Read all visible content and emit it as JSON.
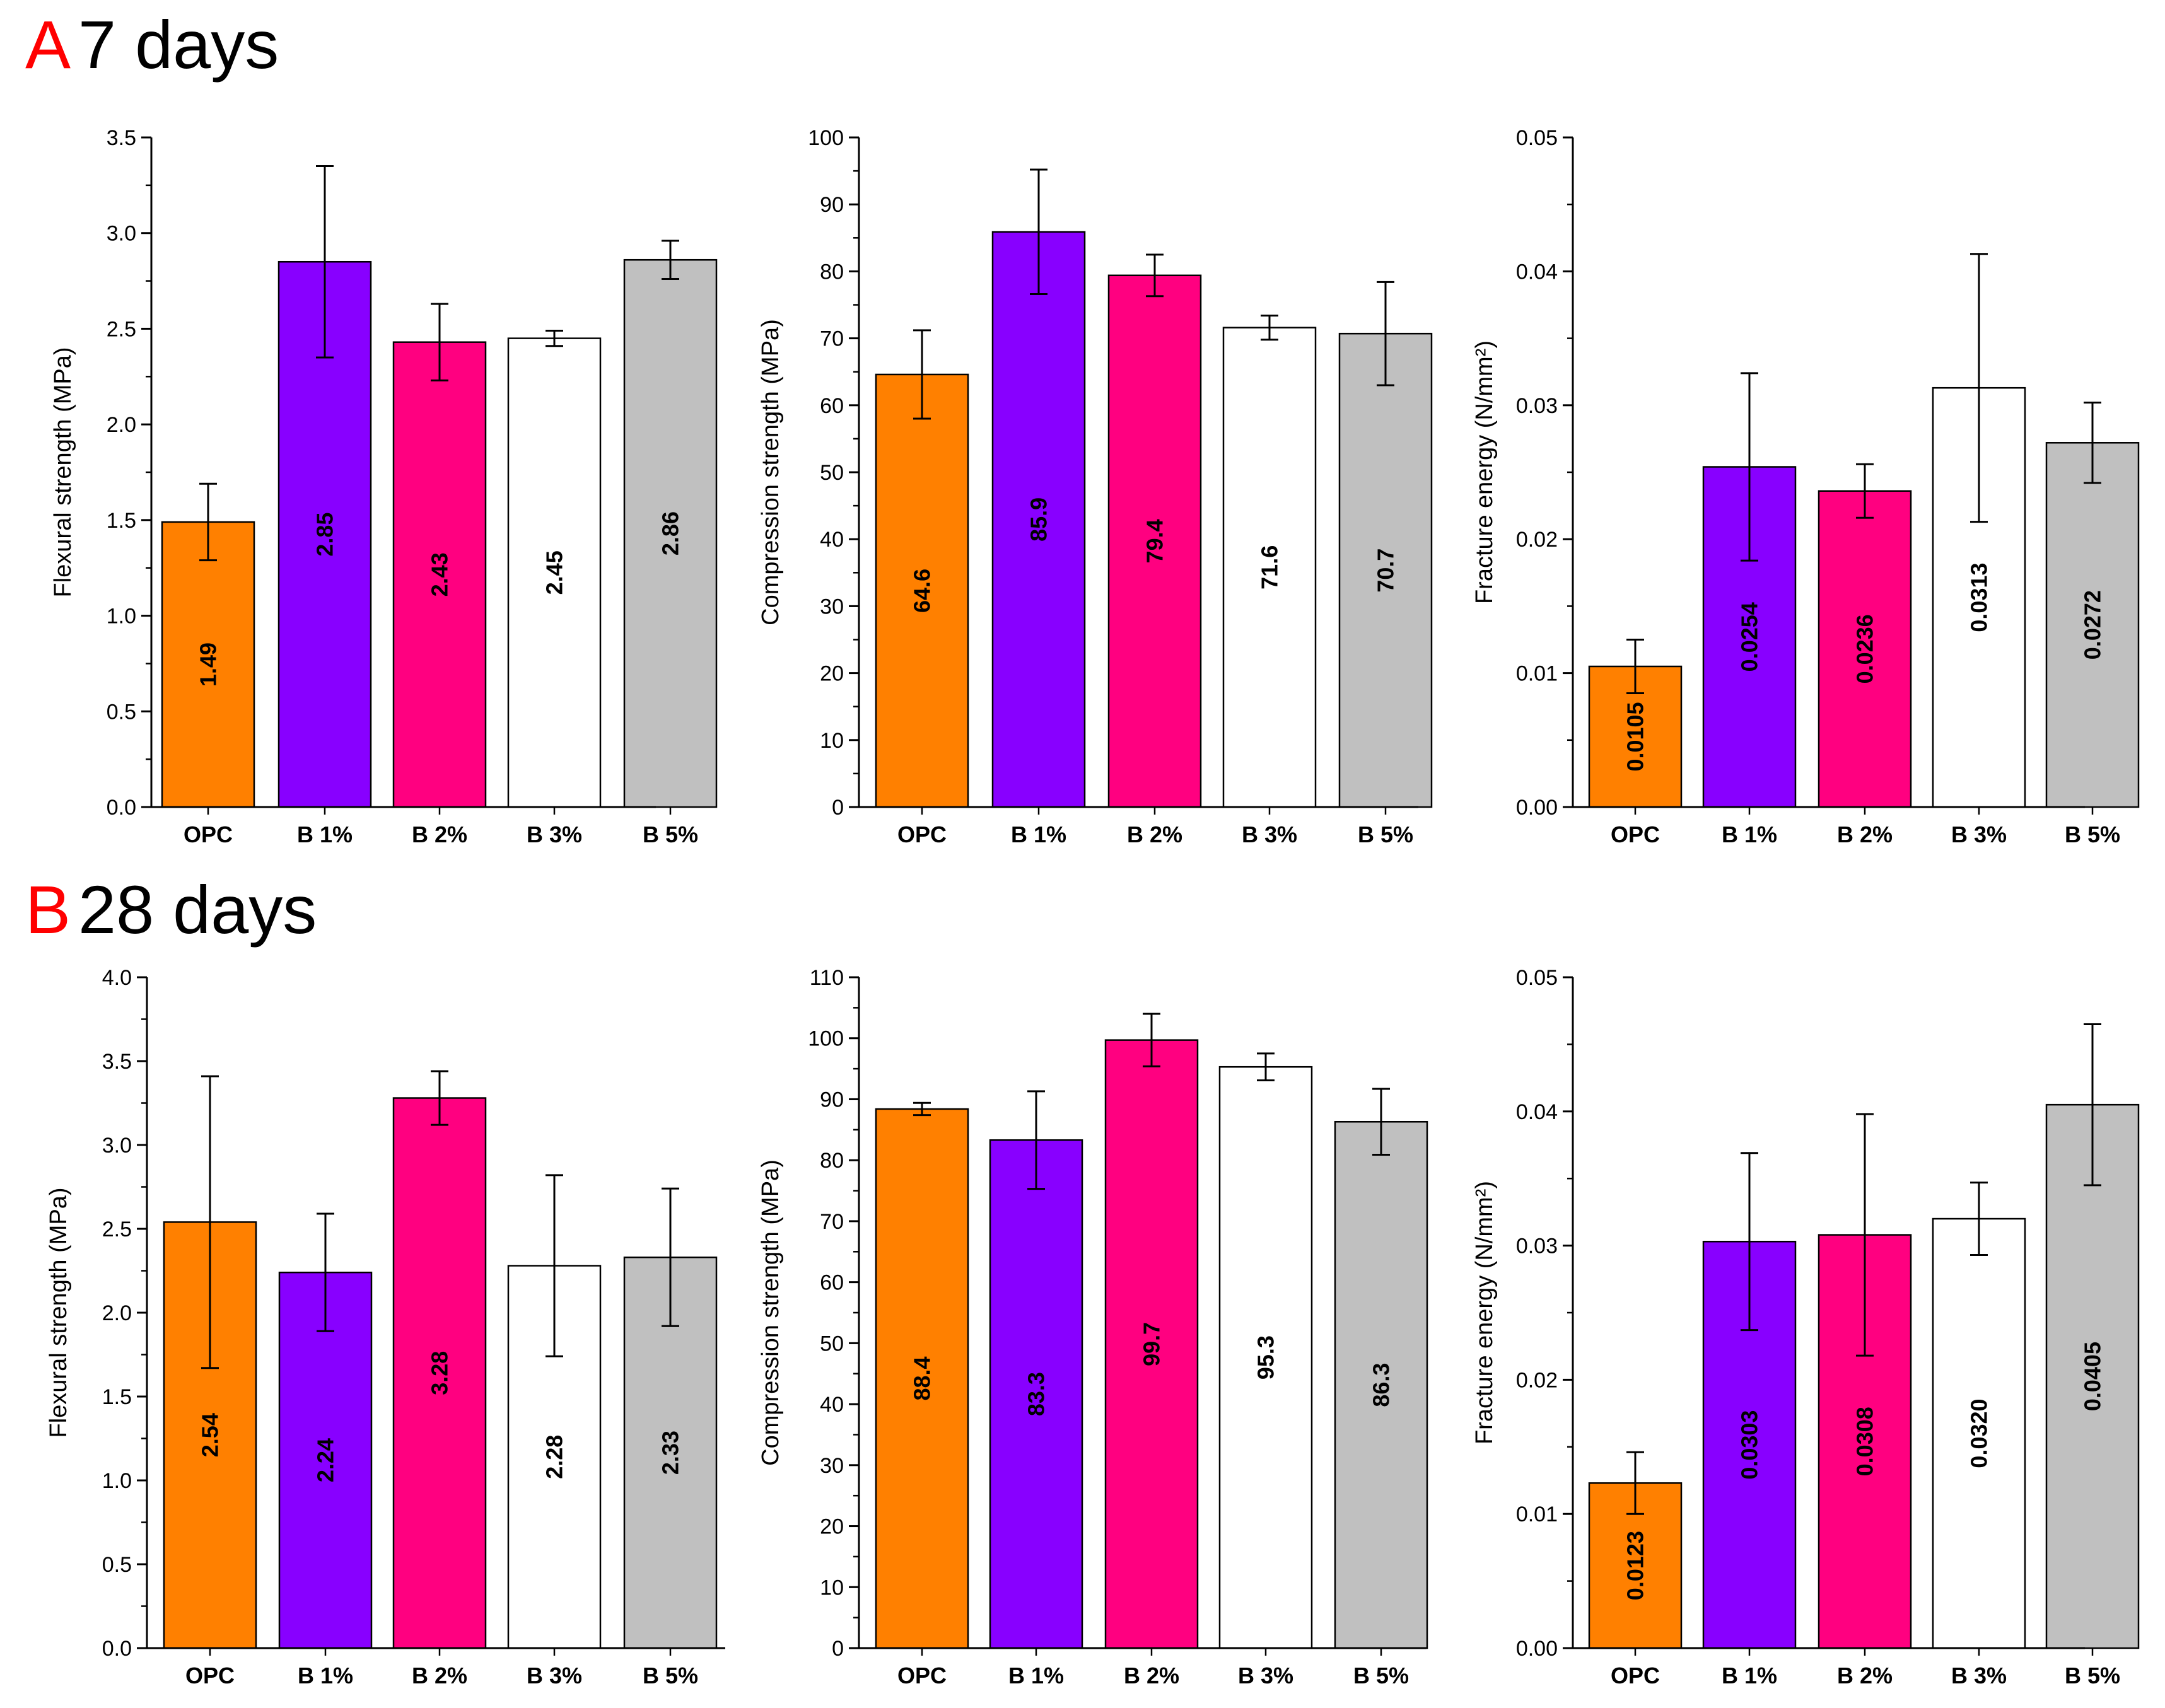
{
  "panels": [
    {
      "letter": "A",
      "title": "7 days"
    },
    {
      "letter": "B",
      "title": "28 days"
    }
  ],
  "chart_data": [
    {
      "type": "bar",
      "panel": "A",
      "categories": [
        "OPC",
        "B 1%",
        "B 2%",
        "B 3%",
        "B 5%"
      ],
      "values": [
        1.49,
        2.85,
        2.43,
        2.45,
        2.86
      ],
      "errors": [
        0.2,
        0.5,
        0.2,
        0.04,
        0.1
      ],
      "labels": [
        "1.49",
        "2.85",
        "2.43",
        "2.45",
        "2.86"
      ],
      "colors": [
        "#ff8000",
        "#8800ff",
        "#ff0080",
        "#ffffff",
        "#c0c0c0"
      ],
      "ylabel": "Flexural strength (MPa)",
      "ylim": [
        0,
        3.5
      ],
      "yticks": [
        "0.0",
        "0.5",
        "1.0",
        "1.5",
        "2.0",
        "2.5",
        "3.0",
        "3.5"
      ],
      "yminor": 0.25
    },
    {
      "type": "bar",
      "panel": "A",
      "categories": [
        "OPC",
        "B 1%",
        "B 2%",
        "B 3%",
        "B 5%"
      ],
      "values": [
        64.6,
        85.9,
        79.4,
        71.6,
        70.7
      ],
      "errors": [
        6.6,
        9.3,
        3.1,
        1.8,
        7.7
      ],
      "labels": [
        "64.6",
        "85.9",
        "79.4",
        "71.6",
        "70.7"
      ],
      "colors": [
        "#ff8000",
        "#8800ff",
        "#ff0080",
        "#ffffff",
        "#c0c0c0"
      ],
      "ylabel": "Compression strength (MPa)",
      "ylim": [
        0,
        100
      ],
      "yticks": [
        "0",
        "10",
        "20",
        "30",
        "40",
        "50",
        "60",
        "70",
        "80",
        "90",
        "100"
      ],
      "yminor": 5
    },
    {
      "type": "bar",
      "panel": "A",
      "categories": [
        "OPC",
        "B 1%",
        "B 2%",
        "B 3%",
        "B 5%"
      ],
      "values": [
        0.0105,
        0.0254,
        0.0236,
        0.0313,
        0.0272
      ],
      "errors": [
        0.002,
        0.007,
        0.002,
        0.01,
        0.003
      ],
      "labels": [
        "0.0105",
        "0.0254",
        "0.0236",
        "0.0313",
        "0.0272"
      ],
      "colors": [
        "#ff8000",
        "#8800ff",
        "#ff0080",
        "#ffffff",
        "#c0c0c0"
      ],
      "ylabel": "Fracture energy (N/mm²)",
      "ylim": [
        0,
        0.05
      ],
      "yticks": [
        "0.00",
        "0.01",
        "0.02",
        "0.03",
        "0.04",
        "0.05"
      ],
      "yminor": 0.005
    },
    {
      "type": "bar",
      "panel": "B",
      "categories": [
        "OPC",
        "B 1%",
        "B 2%",
        "B 3%",
        "B 5%"
      ],
      "values": [
        2.54,
        2.24,
        3.28,
        2.28,
        2.33
      ],
      "errors": [
        0.87,
        0.35,
        0.16,
        0.54,
        0.41
      ],
      "labels": [
        "2.54",
        "2.24",
        "3.28",
        "2.28",
        "2.33"
      ],
      "colors": [
        "#ff8000",
        "#8800ff",
        "#ff0080",
        "#ffffff",
        "#c0c0c0"
      ],
      "ylabel": "Flexural strength (MPa)",
      "ylim": [
        0,
        4.0
      ],
      "yticks": [
        "0.0",
        "0.5",
        "1.0",
        "1.5",
        "2.0",
        "2.5",
        "3.0",
        "3.5",
        "4.0"
      ],
      "yminor": 0.25
    },
    {
      "type": "bar",
      "panel": "B",
      "categories": [
        "OPC",
        "B 1%",
        "B 2%",
        "B 3%",
        "B 5%"
      ],
      "values": [
        88.4,
        83.3,
        99.7,
        95.3,
        86.3
      ],
      "errors": [
        1.0,
        8.0,
        4.3,
        2.2,
        5.4
      ],
      "labels": [
        "88.4",
        "83.3",
        "99.7",
        "95.3",
        "86.3"
      ],
      "colors": [
        "#ff8000",
        "#8800ff",
        "#ff0080",
        "#ffffff",
        "#c0c0c0"
      ],
      "ylabel": "Compression strength (MPa)",
      "ylim": [
        0,
        110
      ],
      "yticks": [
        "0",
        "10",
        "20",
        "30",
        "40",
        "50",
        "60",
        "70",
        "80",
        "90",
        "100",
        "110"
      ],
      "yminor": 5
    },
    {
      "type": "bar",
      "panel": "B",
      "categories": [
        "OPC",
        "B 1%",
        "B 2%",
        "B 3%",
        "B 5%"
      ],
      "values": [
        0.0123,
        0.0303,
        0.0308,
        0.032,
        0.0405
      ],
      "errors": [
        0.0023,
        0.0066,
        0.009,
        0.0027,
        0.006
      ],
      "labels": [
        "0.0123",
        "0.0303",
        "0.0308",
        "0.0320",
        "0.0405"
      ],
      "colors": [
        "#ff8000",
        "#8800ff",
        "#ff0080",
        "#ffffff",
        "#c0c0c0"
      ],
      "ylabel": "Fracture energy (N/mm²)",
      "ylim": [
        0,
        0.05
      ],
      "yticks": [
        "0.00",
        "0.01",
        "0.02",
        "0.03",
        "0.04",
        "0.05"
      ],
      "yminor": 0.005
    }
  ]
}
